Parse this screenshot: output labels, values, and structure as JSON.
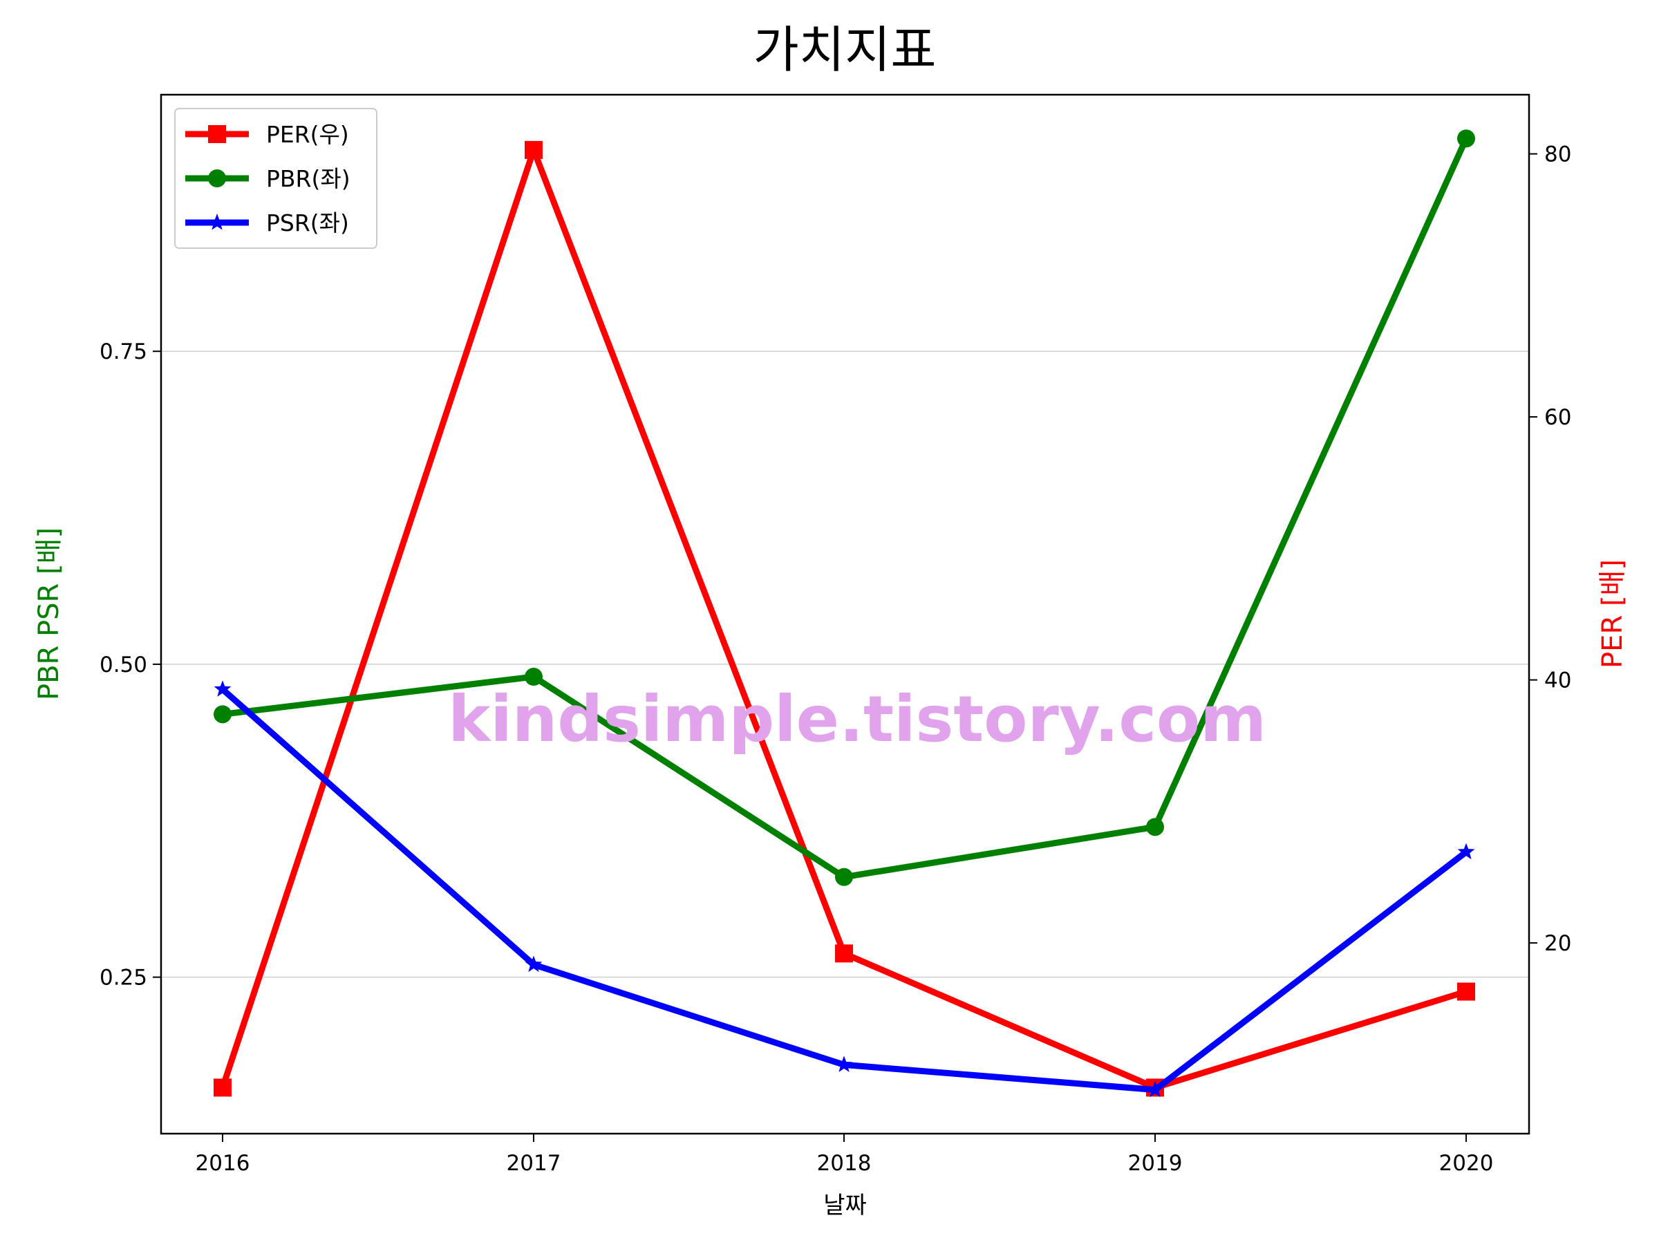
{
  "chart_data": {
    "type": "line",
    "title": "가치지표",
    "xlabel": "날짜",
    "ylabel_left": "PBR PSR [배]",
    "ylabel_right": "PER [배]",
    "ylabel_left_color": "#008000",
    "ylabel_right_color": "#ff0000",
    "categories": [
      "2016",
      "2017",
      "2018",
      "2019",
      "2020"
    ],
    "left_axis": {
      "ylim": [
        0.125,
        0.955
      ],
      "ticks": [
        0.25,
        0.5,
        0.75
      ],
      "tick_labels": [
        "0.25",
        "0.50",
        "0.75"
      ],
      "grid": true
    },
    "right_axis": {
      "ylim": [
        5.5,
        84.5
      ],
      "ticks": [
        20,
        40,
        60,
        80
      ],
      "tick_labels": [
        "20",
        "40",
        "60",
        "80"
      ]
    },
    "series": [
      {
        "name": "PER(우)",
        "axis": "right",
        "color": "#ff0000",
        "marker": "square",
        "values": [
          9.0,
          80.3,
          19.2,
          9.0,
          16.3
        ]
      },
      {
        "name": "PBR(좌)",
        "axis": "left",
        "color": "#008000",
        "marker": "circle",
        "values": [
          0.46,
          0.49,
          0.33,
          0.37,
          0.92
        ]
      },
      {
        "name": "PSR(좌)",
        "axis": "left",
        "color": "#0000ff",
        "marker": "star",
        "values": [
          0.48,
          0.26,
          0.18,
          0.16,
          0.35
        ]
      }
    ],
    "legend": {
      "position": "top-left"
    },
    "watermark": "kindsimple.tistory.com",
    "watermark_color": "#e0a3ec"
  }
}
